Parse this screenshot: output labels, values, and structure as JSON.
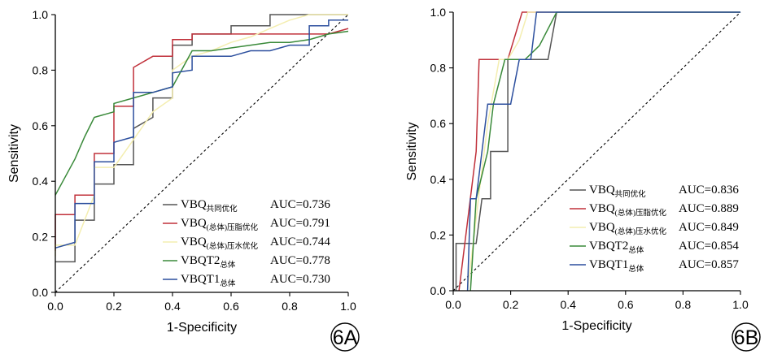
{
  "chart_data": [
    {
      "type": "line",
      "panel_label": "6A",
      "xlabel": "1-Specificity",
      "ylabel": "Sensitivity",
      "xlim": [
        0,
        1
      ],
      "ylim": [
        0,
        1
      ],
      "x_ticks": [
        "0.0",
        "0.2",
        "0.4",
        "0.6",
        "0.8",
        "1.0"
      ],
      "y_ticks": [
        "0.0",
        "0.2",
        "0.4",
        "0.6",
        "0.8",
        "1.0"
      ],
      "reference_line": "diagonal dashed",
      "legend_position": "bottom-right",
      "series": [
        {
          "name": "VBQ",
          "sub": "共同优化",
          "auc": "AUC=0.736",
          "color": "#555555",
          "points": [
            [
              0,
              0.11
            ],
            [
              0.067,
              0.11
            ],
            [
              0.067,
              0.26
            ],
            [
              0.133,
              0.26
            ],
            [
              0.133,
              0.39
            ],
            [
              0.2,
              0.39
            ],
            [
              0.2,
              0.46
            ],
            [
              0.267,
              0.46
            ],
            [
              0.267,
              0.59
            ],
            [
              0.333,
              0.63
            ],
            [
              0.333,
              0.7
            ],
            [
              0.4,
              0.7
            ],
            [
              0.4,
              0.89
            ],
            [
              0.467,
              0.89
            ],
            [
              0.467,
              0.93
            ],
            [
              0.533,
              0.93
            ],
            [
              0.533,
              0.93
            ],
            [
              0.6,
              0.93
            ],
            [
              0.6,
              0.96
            ],
            [
              0.733,
              0.96
            ],
            [
              0.733,
              1.0
            ],
            [
              1.0,
              1.0
            ]
          ]
        },
        {
          "name": "VBQ",
          "sub": "(总体)压脂优化",
          "auc": "AUC=0.791",
          "color": "#c0303a",
          "points": [
            [
              0,
              0.15
            ],
            [
              0,
              0.28
            ],
            [
              0.067,
              0.28
            ],
            [
              0.067,
              0.35
            ],
            [
              0.133,
              0.35
            ],
            [
              0.133,
              0.5
            ],
            [
              0.2,
              0.5
            ],
            [
              0.2,
              0.67
            ],
            [
              0.267,
              0.67
            ],
            [
              0.267,
              0.81
            ],
            [
              0.333,
              0.85
            ],
            [
              0.4,
              0.85
            ],
            [
              0.4,
              0.91
            ],
            [
              0.467,
              0.91
            ],
            [
              0.467,
              0.93
            ],
            [
              0.533,
              0.93
            ],
            [
              0.6,
              0.93
            ],
            [
              0.667,
              0.93
            ],
            [
              0.733,
              0.93
            ],
            [
              0.8,
              0.93
            ],
            [
              0.867,
              0.93
            ],
            [
              0.933,
              0.93
            ],
            [
              1.0,
              0.95
            ]
          ]
        },
        {
          "name": "VBQ",
          "sub": "(总体)压水优化",
          "auc": "AUC=0.744",
          "color": "#f4eeb0",
          "points": [
            [
              0,
              0.13
            ],
            [
              0,
              0.17
            ],
            [
              0.067,
              0.17
            ],
            [
              0.133,
              0.35
            ],
            [
              0.133,
              0.45
            ],
            [
              0.2,
              0.45
            ],
            [
              0.267,
              0.55
            ],
            [
              0.333,
              0.65
            ],
            [
              0.4,
              0.7
            ],
            [
              0.4,
              0.8
            ],
            [
              0.467,
              0.85
            ],
            [
              0.533,
              0.87
            ],
            [
              0.6,
              0.9
            ],
            [
              0.667,
              0.92
            ],
            [
              0.733,
              0.95
            ],
            [
              0.8,
              0.98
            ],
            [
              0.867,
              1.0
            ],
            [
              1.0,
              1.0
            ]
          ]
        },
        {
          "name": "VBQT2",
          "sub": "总体",
          "auc": "AUC=0.778",
          "color": "#3a8a3a",
          "points": [
            [
              0,
              0.35
            ],
            [
              0.067,
              0.48
            ],
            [
              0.1,
              0.56
            ],
            [
              0.133,
              0.63
            ],
            [
              0.2,
              0.65
            ],
            [
              0.2,
              0.68
            ],
            [
              0.267,
              0.7
            ],
            [
              0.333,
              0.72
            ],
            [
              0.4,
              0.74
            ],
            [
              0.467,
              0.87
            ],
            [
              0.533,
              0.87
            ],
            [
              0.6,
              0.88
            ],
            [
              0.667,
              0.89
            ],
            [
              0.733,
              0.9
            ],
            [
              0.8,
              0.9
            ],
            [
              0.867,
              0.91
            ],
            [
              0.933,
              0.93
            ],
            [
              1.0,
              0.94
            ]
          ]
        },
        {
          "name": "VBQT1",
          "sub": "总体",
          "auc": "AUC=0.730",
          "color": "#2c4f9e",
          "points": [
            [
              0,
              0.16
            ],
            [
              0.067,
              0.18
            ],
            [
              0.067,
              0.32
            ],
            [
              0.133,
              0.32
            ],
            [
              0.133,
              0.47
            ],
            [
              0.2,
              0.47
            ],
            [
              0.2,
              0.54
            ],
            [
              0.267,
              0.56
            ],
            [
              0.267,
              0.72
            ],
            [
              0.333,
              0.72
            ],
            [
              0.4,
              0.74
            ],
            [
              0.4,
              0.79
            ],
            [
              0.467,
              0.8
            ],
            [
              0.467,
              0.85
            ],
            [
              0.533,
              0.85
            ],
            [
              0.6,
              0.85
            ],
            [
              0.667,
              0.87
            ],
            [
              0.733,
              0.87
            ],
            [
              0.8,
              0.89
            ],
            [
              0.867,
              0.89
            ],
            [
              0.867,
              0.96
            ],
            [
              0.933,
              0.96
            ],
            [
              0.933,
              0.98
            ],
            [
              1.0,
              0.98
            ]
          ]
        }
      ]
    },
    {
      "type": "line",
      "panel_label": "6B",
      "xlabel": "1-Specificity",
      "ylabel": "Sensitivity",
      "xlim": [
        0,
        1
      ],
      "ylim": [
        0,
        1
      ],
      "x_ticks": [
        "0.0",
        "0.2",
        "0.4",
        "0.6",
        "0.8",
        "1.0"
      ],
      "y_ticks": [
        "0.0",
        "0.2",
        "0.4",
        "0.6",
        "0.8",
        "1.0"
      ],
      "reference_line": "diagonal dashed",
      "legend_position": "bottom-right",
      "series": [
        {
          "name": "VBQ",
          "sub": "共同优化",
          "auc": "AUC=0.836",
          "color": "#555555",
          "points": [
            [
              0.01,
              0
            ],
            [
              0.01,
              0.17
            ],
            [
              0.08,
              0.17
            ],
            [
              0.1,
              0.33
            ],
            [
              0.13,
              0.33
            ],
            [
              0.13,
              0.5
            ],
            [
              0.19,
              0.5
            ],
            [
              0.19,
              0.83
            ],
            [
              0.25,
              0.83
            ],
            [
              0.25,
              0.83
            ],
            [
              0.33,
              0.83
            ],
            [
              0.36,
              1.0
            ],
            [
              1.0,
              1.0
            ]
          ]
        },
        {
          "name": "VBQ",
          "sub": "(总体)压脂优化",
          "auc": "AUC=0.889",
          "color": "#c0303a",
          "points": [
            [
              0.02,
              0
            ],
            [
              0.08,
              0.5
            ],
            [
              0.09,
              0.83
            ],
            [
              0.15,
              0.83
            ],
            [
              0.19,
              0.83
            ],
            [
              0.24,
              1.0
            ],
            [
              1.0,
              1.0
            ]
          ]
        },
        {
          "name": "VBQ",
          "sub": "(总体)压水优化",
          "auc": "AUC=0.849",
          "color": "#f4eeb0",
          "points": [
            [
              0.05,
              0
            ],
            [
              0.09,
              0.35
            ],
            [
              0.12,
              0.6
            ],
            [
              0.16,
              0.83
            ],
            [
              0.19,
              0.83
            ],
            [
              0.23,
              0.9
            ],
            [
              0.26,
              1.0
            ],
            [
              0.38,
              1.0
            ],
            [
              1.0,
              1.0
            ]
          ]
        },
        {
          "name": "VBQT2",
          "sub": "总体",
          "auc": "AUC=0.854",
          "color": "#3a8a3a",
          "points": [
            [
              0.06,
              0
            ],
            [
              0.08,
              0.33
            ],
            [
              0.12,
              0.5
            ],
            [
              0.14,
              0.67
            ],
            [
              0.18,
              0.83
            ],
            [
              0.2,
              0.83
            ],
            [
              0.25,
              0.83
            ],
            [
              0.3,
              0.88
            ],
            [
              0.36,
              1.0
            ],
            [
              1.0,
              1.0
            ]
          ]
        },
        {
          "name": "VBQT1",
          "sub": "总体",
          "auc": "AUC=0.857",
          "color": "#2c4f9e",
          "points": [
            [
              0.05,
              0
            ],
            [
              0.06,
              0.33
            ],
            [
              0.08,
              0.33
            ],
            [
              0.1,
              0.5
            ],
            [
              0.12,
              0.67
            ],
            [
              0.2,
              0.67
            ],
            [
              0.23,
              0.83
            ],
            [
              0.27,
              0.83
            ],
            [
              0.27,
              0.83
            ],
            [
              0.29,
              1.0
            ],
            [
              1.0,
              1.0
            ]
          ]
        }
      ]
    }
  ]
}
